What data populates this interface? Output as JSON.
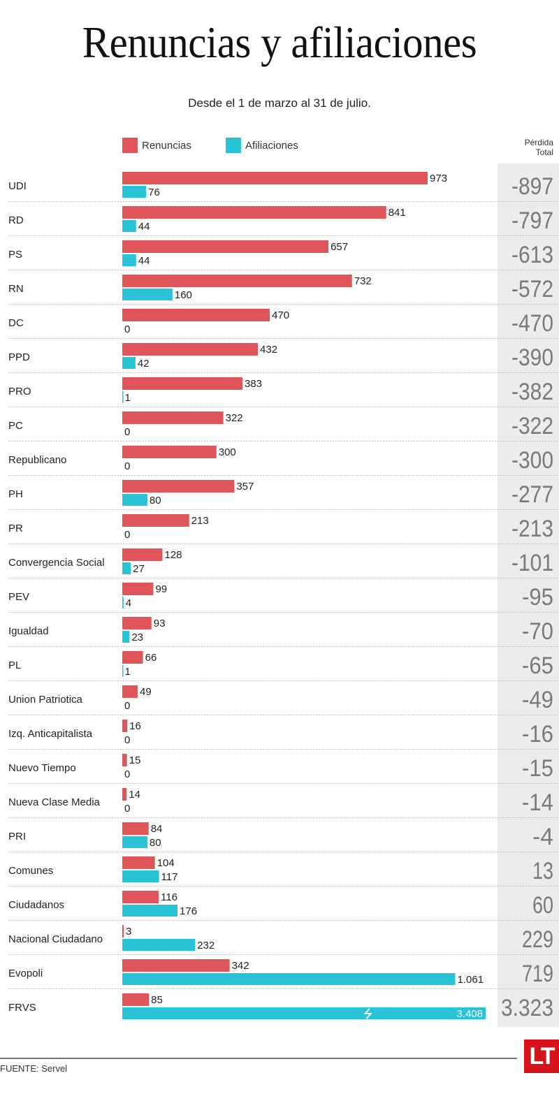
{
  "title": "Renuncias y afiliaciones",
  "subtitle": "Desde el 1 de marzo al 31 de julio.",
  "legend": {
    "renuncias": "Renuncias",
    "afiliaciones": "Afiliaciones"
  },
  "perdida_header": {
    "line1": "Pérdida",
    "line2": "Total"
  },
  "source": "FUENTE: Servel",
  "logo": "LT",
  "colors": {
    "renuncias": "#e05557",
    "afiliaciones": "#29c3d6"
  },
  "chart_data": {
    "type": "bar",
    "orientation": "horizontal",
    "title": "Renuncias y afiliaciones",
    "subtitle": "Desde el 1 de marzo al 31 de julio.",
    "categories": [
      "UDI",
      "RD",
      "PS",
      "RN",
      "DC",
      "PPD",
      "PRO",
      "PC",
      "Republicano",
      "PH",
      "PR",
      "Convergencia Social",
      "PEV",
      "Igualdad",
      "PL",
      "Union Patriotica",
      "Izq. Anticapitalista",
      "Nuevo Tiempo",
      "Nueva Clase Media",
      "PRI",
      "Comunes",
      "Ciudadanos",
      "Nacional Ciudadano",
      "Evopoli",
      "FRVS"
    ],
    "series": [
      {
        "name": "Renuncias",
        "values": [
          973,
          841,
          657,
          732,
          470,
          432,
          383,
          322,
          300,
          357,
          213,
          128,
          99,
          93,
          66,
          49,
          16,
          15,
          14,
          84,
          104,
          116,
          3,
          342,
          85
        ],
        "labels": [
          "973",
          "841",
          "657",
          "732",
          "470",
          "432",
          "383",
          "322",
          "300",
          "357",
          "213",
          "128",
          "99",
          "93",
          "66",
          "49",
          "16",
          "15",
          "14",
          "84",
          "104",
          "116",
          "3",
          "342",
          "85"
        ]
      },
      {
        "name": "Afiliaciones",
        "values": [
          76,
          44,
          44,
          160,
          0,
          42,
          1,
          0,
          0,
          80,
          0,
          27,
          4,
          23,
          1,
          0,
          0,
          0,
          0,
          80,
          117,
          176,
          232,
          1061,
          3408
        ],
        "labels": [
          "76",
          "44",
          "44",
          "160",
          "0",
          "42",
          "1",
          "0",
          "0",
          "80",
          "0",
          "27",
          "4",
          "23",
          "1",
          "0",
          "0",
          "0",
          "0",
          "80",
          "117",
          "176",
          "232",
          "1.061",
          "3.408"
        ]
      }
    ],
    "totals_header": "Pérdida Total",
    "totals": [
      "-897",
      "-797",
      "-613",
      "-572",
      "-470",
      "-390",
      "-382",
      "-322",
      "-300",
      "-277",
      "-213",
      "-101",
      "-95",
      "-70",
      "-65",
      "-49",
      "-16",
      "-15",
      "-14",
      "-4",
      "13",
      "60",
      "229",
      "719",
      "3.323"
    ],
    "annotations": [
      "FRVS Afiliaciones bar truncated (axis break)"
    ],
    "legend_position": "top",
    "grid": false
  }
}
